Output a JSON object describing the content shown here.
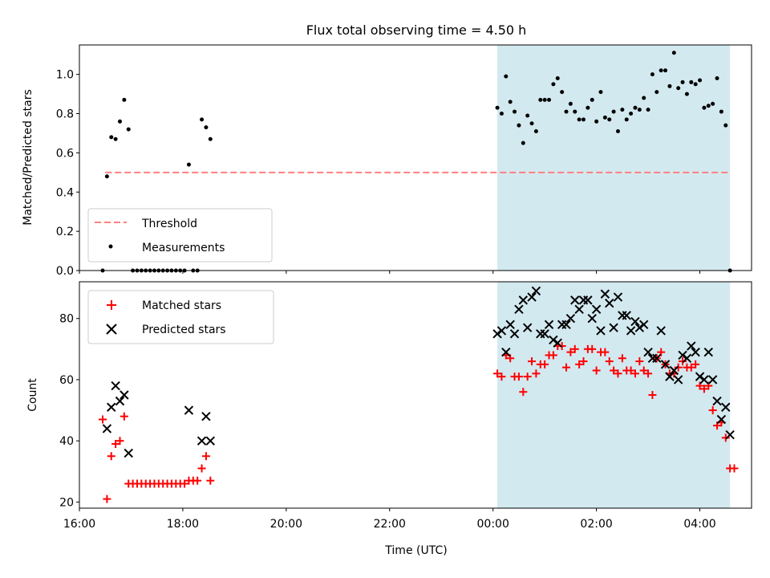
{
  "title": "Flux total observing time = 4.50 h",
  "colors": {
    "shade": "#d3e9f0",
    "threshold": "#ff7f7f",
    "matched": "#ff0000",
    "predicted": "#000000",
    "measurement": "#000000"
  },
  "chart_data": [
    {
      "type": "scatter",
      "ylabel": "Matched/Predicted stars",
      "xlim": [
        "16:00",
        "05:00"
      ],
      "ylim": [
        0,
        1.15
      ],
      "yticks": [
        "0.0",
        "0.2",
        "0.4",
        "0.6",
        "0.8",
        "1.0"
      ],
      "shaded_interval": [
        "00:05",
        "04:35"
      ],
      "legend_position": "lower-left",
      "threshold": {
        "name": "Threshold",
        "value": 0.5,
        "x_range": [
          "16:30",
          "04:35"
        ]
      },
      "series": [
        {
          "name": "Measurements",
          "points": [
            [
              "16:27",
              0.0
            ],
            [
              "16:32",
              0.48
            ],
            [
              "16:37",
              0.68
            ],
            [
              "16:42",
              0.67
            ],
            [
              "16:47",
              0.76
            ],
            [
              "16:52",
              0.87
            ],
            [
              "16:57",
              0.72
            ],
            [
              "17:02",
              0.0
            ],
            [
              "17:07",
              0.0
            ],
            [
              "17:12",
              0.0
            ],
            [
              "17:17",
              0.0
            ],
            [
              "17:22",
              0.0
            ],
            [
              "17:27",
              0.0
            ],
            [
              "17:32",
              0.0
            ],
            [
              "17:37",
              0.0
            ],
            [
              "17:42",
              0.0
            ],
            [
              "17:47",
              0.0
            ],
            [
              "17:52",
              0.0
            ],
            [
              "17:57",
              0.0
            ],
            [
              "18:02",
              0.0
            ],
            [
              "18:07",
              0.54
            ],
            [
              "18:12",
              0.0
            ],
            [
              "18:17",
              0.0
            ],
            [
              "18:22",
              0.77
            ],
            [
              "18:27",
              0.73
            ],
            [
              "18:32",
              0.67
            ],
            [
              "00:05",
              0.83
            ],
            [
              "00:10",
              0.8
            ],
            [
              "00:15",
              0.99
            ],
            [
              "00:20",
              0.86
            ],
            [
              "00:25",
              0.81
            ],
            [
              "00:30",
              0.74
            ],
            [
              "00:35",
              0.65
            ],
            [
              "00:40",
              0.79
            ],
            [
              "00:45",
              0.75
            ],
            [
              "00:50",
              0.71
            ],
            [
              "00:55",
              0.87
            ],
            [
              "01:00",
              0.87
            ],
            [
              "01:05",
              0.87
            ],
            [
              "01:10",
              0.95
            ],
            [
              "01:15",
              0.98
            ],
            [
              "01:20",
              0.91
            ],
            [
              "01:25",
              0.81
            ],
            [
              "01:30",
              0.85
            ],
            [
              "01:35",
              0.81
            ],
            [
              "01:40",
              0.77
            ],
            [
              "01:45",
              0.77
            ],
            [
              "01:50",
              0.83
            ],
            [
              "01:55",
              0.87
            ],
            [
              "02:00",
              0.76
            ],
            [
              "02:05",
              0.91
            ],
            [
              "02:10",
              0.78
            ],
            [
              "02:15",
              0.77
            ],
            [
              "02:20",
              0.81
            ],
            [
              "02:25",
              0.71
            ],
            [
              "02:30",
              0.82
            ],
            [
              "02:35",
              0.77
            ],
            [
              "02:40",
              0.8
            ],
            [
              "02:45",
              0.83
            ],
            [
              "02:50",
              0.82
            ],
            [
              "02:55",
              0.88
            ],
            [
              "03:00",
              0.82
            ],
            [
              "03:05",
              1.0
            ],
            [
              "03:10",
              0.91
            ],
            [
              "03:15",
              1.02
            ],
            [
              "03:20",
              1.02
            ],
            [
              "03:25",
              0.94
            ],
            [
              "03:30",
              1.11
            ],
            [
              "03:35",
              0.93
            ],
            [
              "03:40",
              0.96
            ],
            [
              "03:45",
              0.9
            ],
            [
              "03:50",
              0.96
            ],
            [
              "03:55",
              0.95
            ],
            [
              "04:00",
              0.97
            ],
            [
              "04:05",
              0.83
            ],
            [
              "04:10",
              0.84
            ],
            [
              "04:15",
              0.85
            ],
            [
              "04:20",
              0.98
            ],
            [
              "04:25",
              0.81
            ],
            [
              "04:30",
              0.74
            ],
            [
              "04:35",
              0.0
            ]
          ]
        }
      ]
    },
    {
      "type": "scatter",
      "ylabel": "Count",
      "xlabel": "Time (UTC)",
      "xlim": [
        "16:00",
        "05:00"
      ],
      "ylim": [
        18,
        92
      ],
      "yticks": [
        "20",
        "40",
        "60",
        "80"
      ],
      "xticks": [
        "16:00",
        "18:00",
        "20:00",
        "22:00",
        "00:00",
        "02:00",
        "04:00"
      ],
      "shaded_interval": [
        "00:05",
        "04:35"
      ],
      "legend_position": "upper-left",
      "series": [
        {
          "name": "Matched stars",
          "marker": "plus",
          "points": [
            [
              "16:27",
              47
            ],
            [
              "16:32",
              21
            ],
            [
              "16:37",
              35
            ],
            [
              "16:42",
              39
            ],
            [
              "16:47",
              40
            ],
            [
              "16:52",
              48
            ],
            [
              "16:57",
              26
            ],
            [
              "17:02",
              26
            ],
            [
              "17:07",
              26
            ],
            [
              "17:12",
              26
            ],
            [
              "17:17",
              26
            ],
            [
              "17:22",
              26
            ],
            [
              "17:27",
              26
            ],
            [
              "17:32",
              26
            ],
            [
              "17:37",
              26
            ],
            [
              "17:42",
              26
            ],
            [
              "17:47",
              26
            ],
            [
              "17:52",
              26
            ],
            [
              "17:57",
              26
            ],
            [
              "18:02",
              26
            ],
            [
              "18:07",
              27
            ],
            [
              "18:12",
              27
            ],
            [
              "18:17",
              27
            ],
            [
              "18:22",
              31
            ],
            [
              "18:27",
              35
            ],
            [
              "18:32",
              27
            ],
            [
              "00:05",
              62
            ],
            [
              "00:10",
              61
            ],
            [
              "00:15",
              68
            ],
            [
              "00:20",
              67
            ],
            [
              "00:25",
              61
            ],
            [
              "00:30",
              61
            ],
            [
              "00:35",
              56
            ],
            [
              "00:40",
              61
            ],
            [
              "00:45",
              66
            ],
            [
              "00:50",
              62
            ],
            [
              "00:55",
              65
            ],
            [
              "01:00",
              65
            ],
            [
              "01:05",
              68
            ],
            [
              "01:10",
              68
            ],
            [
              "01:15",
              71
            ],
            [
              "01:20",
              71
            ],
            [
              "01:25",
              64
            ],
            [
              "01:30",
              69
            ],
            [
              "01:35",
              70
            ],
            [
              "01:40",
              65
            ],
            [
              "01:45",
              66
            ],
            [
              "01:50",
              70
            ],
            [
              "01:55",
              70
            ],
            [
              "02:00",
              63
            ],
            [
              "02:05",
              69
            ],
            [
              "02:10",
              69
            ],
            [
              "02:15",
              66
            ],
            [
              "02:20",
              63
            ],
            [
              "02:25",
              62
            ],
            [
              "02:30",
              67
            ],
            [
              "02:35",
              63
            ],
            [
              "02:40",
              63
            ],
            [
              "02:45",
              62
            ],
            [
              "02:50",
              66
            ],
            [
              "02:55",
              63
            ],
            [
              "03:00",
              62
            ],
            [
              "03:05",
              55
            ],
            [
              "03:10",
              67
            ],
            [
              "03:15",
              69
            ],
            [
              "03:20",
              65
            ],
            [
              "03:25",
              62
            ],
            [
              "03:30",
              62
            ],
            [
              "03:35",
              64
            ],
            [
              "03:40",
              66
            ],
            [
              "03:45",
              64
            ],
            [
              "03:50",
              64
            ],
            [
              "03:55",
              65
            ],
            [
              "04:00",
              58
            ],
            [
              "04:05",
              57
            ],
            [
              "04:10",
              58
            ],
            [
              "04:15",
              50
            ],
            [
              "04:20",
              45
            ],
            [
              "04:25",
              46
            ],
            [
              "04:30",
              41
            ],
            [
              "04:35",
              31
            ],
            [
              "04:40",
              31
            ]
          ]
        },
        {
          "name": "Predicted stars",
          "marker": "x",
          "points": [
            [
              "16:32",
              44
            ],
            [
              "16:37",
              51
            ],
            [
              "16:42",
              58
            ],
            [
              "16:47",
              53
            ],
            [
              "16:52",
              55
            ],
            [
              "16:57",
              36
            ],
            [
              "18:07",
              50
            ],
            [
              "18:22",
              40
            ],
            [
              "18:27",
              48
            ],
            [
              "18:32",
              40
            ],
            [
              "00:05",
              75
            ],
            [
              "00:10",
              76
            ],
            [
              "00:15",
              69
            ],
            [
              "00:20",
              78
            ],
            [
              "00:25",
              75
            ],
            [
              "00:30",
              83
            ],
            [
              "00:35",
              86
            ],
            [
              "00:40",
              77
            ],
            [
              "00:45",
              87
            ],
            [
              "00:50",
              89
            ],
            [
              "00:55",
              75
            ],
            [
              "01:00",
              75
            ],
            [
              "01:05",
              78
            ],
            [
              "01:10",
              73
            ],
            [
              "01:15",
              72
            ],
            [
              "01:20",
              78
            ],
            [
              "01:25",
              78
            ],
            [
              "01:30",
              80
            ],
            [
              "01:35",
              86
            ],
            [
              "01:40",
              83
            ],
            [
              "01:45",
              86
            ],
            [
              "01:50",
              86
            ],
            [
              "01:55",
              80
            ],
            [
              "02:00",
              83
            ],
            [
              "02:05",
              76
            ],
            [
              "02:10",
              88
            ],
            [
              "02:15",
              85
            ],
            [
              "02:20",
              77
            ],
            [
              "02:25",
              87
            ],
            [
              "02:30",
              81
            ],
            [
              "02:35",
              81
            ],
            [
              "02:40",
              76
            ],
            [
              "02:45",
              79
            ],
            [
              "02:50",
              77
            ],
            [
              "02:55",
              78
            ],
            [
              "03:00",
              69
            ],
            [
              "03:05",
              67
            ],
            [
              "03:10",
              67
            ],
            [
              "03:15",
              76
            ],
            [
              "03:20",
              65
            ],
            [
              "03:25",
              61
            ],
            [
              "03:30",
              63
            ],
            [
              "03:35",
              60
            ],
            [
              "03:40",
              68
            ],
            [
              "03:45",
              67
            ],
            [
              "03:50",
              71
            ],
            [
              "03:55",
              69
            ],
            [
              "04:00",
              61
            ],
            [
              "04:05",
              60
            ],
            [
              "04:10",
              69
            ],
            [
              "04:15",
              60
            ],
            [
              "04:20",
              53
            ],
            [
              "04:25",
              47
            ],
            [
              "04:30",
              51
            ],
            [
              "04:35",
              42
            ]
          ]
        }
      ]
    }
  ]
}
